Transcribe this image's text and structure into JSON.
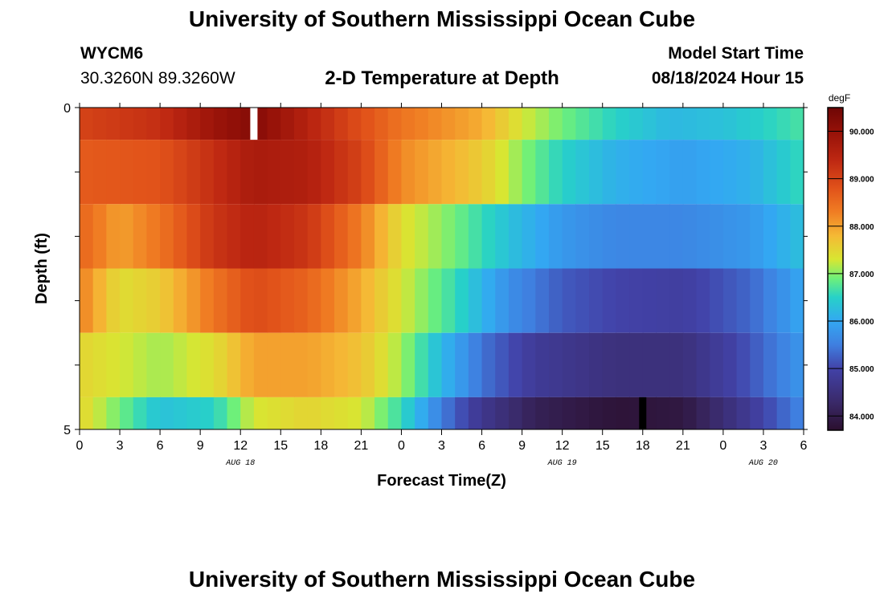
{
  "header": {
    "title": "University of Southern Mississippi Ocean Cube",
    "station_id": "WYCM6",
    "coordinates": "30.3260N  89.3260W",
    "plot_title": "2-D Temperature at Depth",
    "start_label": "Model Start Time",
    "start_value": "08/18/2024 Hour 15"
  },
  "footer": {
    "title": "University of Southern Mississippi Ocean Cube"
  },
  "colors": {
    "missing_high": "#ffffff",
    "missing_low": "#000000",
    "axis": "#000000"
  },
  "chart_data": {
    "type": "heatmap",
    "title": "2-D Temperature at Depth",
    "xlabel": "Forecast Time(Z)",
    "ylabel": "Depth (ft)",
    "x_tick_labels": [
      "0",
      "3",
      "6",
      "9",
      "12",
      "15",
      "18",
      "21",
      "0",
      "3",
      "6",
      "9",
      "12",
      "15",
      "18",
      "21",
      "0",
      "3",
      "6"
    ],
    "date_labels": [
      {
        "text": "AUG 18",
        "at_hour": 12
      },
      {
        "text": "AUG 19",
        "at_hour": 36
      },
      {
        "text": "AUG 20",
        "at_hour": 51
      }
    ],
    "y_tick_labels": [
      {
        "text": "0",
        "depth": 0
      },
      {
        "text": "5",
        "depth": 5
      }
    ],
    "y_minor_ticks": [
      1,
      2,
      3,
      4
    ],
    "xlim": [
      0,
      54
    ],
    "ylim": [
      0,
      5
    ],
    "colorbar": {
      "unit": "degF",
      "min": 83.7,
      "max": 90.5,
      "tick_labels": [
        "84.000",
        "85.000",
        "86.000",
        "87.000",
        "88.000",
        "89.000",
        "90.000"
      ],
      "tick_values": [
        84,
        85,
        86,
        87,
        88,
        89,
        90
      ],
      "stops": [
        [
          83.7,
          "#2b0f2e"
        ],
        [
          84.3,
          "#3a2a6a"
        ],
        [
          85.0,
          "#4242a8"
        ],
        [
          85.5,
          "#3f7fe0"
        ],
        [
          86.0,
          "#33a8f2"
        ],
        [
          86.5,
          "#27d1c8"
        ],
        [
          86.9,
          "#6ef07a"
        ],
        [
          87.3,
          "#d8e632"
        ],
        [
          87.8,
          "#f5b935"
        ],
        [
          88.3,
          "#f07d23"
        ],
        [
          88.8,
          "#e1521a"
        ],
        [
          89.4,
          "#bd2712"
        ],
        [
          90.0,
          "#951108"
        ],
        [
          90.5,
          "#6e0606"
        ]
      ]
    },
    "layers": [
      {
        "depth_top": 0.0,
        "depth_bottom": 0.5,
        "keyframes": [
          [
            0,
            89.0
          ],
          [
            6,
            89.3
          ],
          [
            10,
            89.9
          ],
          [
            13,
            90.2
          ],
          [
            16,
            89.7
          ],
          [
            20,
            89.0
          ],
          [
            24,
            88.4
          ],
          [
            30,
            87.9
          ],
          [
            33,
            87.3
          ],
          [
            36,
            86.9
          ],
          [
            40,
            86.5
          ],
          [
            44,
            86.2
          ],
          [
            48,
            86.3
          ],
          [
            54,
            86.7
          ]
        ]
      },
      {
        "depth_top": 0.5,
        "depth_bottom": 1.5,
        "keyframes": [
          [
            0,
            88.7
          ],
          [
            6,
            88.8
          ],
          [
            10,
            89.3
          ],
          [
            13,
            89.7
          ],
          [
            17,
            89.6
          ],
          [
            21,
            89.0
          ],
          [
            24,
            88.2
          ],
          [
            30,
            87.6
          ],
          [
            33,
            87.0
          ],
          [
            36,
            86.5
          ],
          [
            40,
            86.1
          ],
          [
            45,
            85.9
          ],
          [
            50,
            86.1
          ],
          [
            54,
            86.6
          ]
        ]
      },
      {
        "depth_top": 1.5,
        "depth_bottom": 2.5,
        "keyframes": [
          [
            0,
            88.6
          ],
          [
            3,
            88.0
          ],
          [
            6,
            88.4
          ],
          [
            10,
            89.2
          ],
          [
            13,
            89.5
          ],
          [
            17,
            89.2
          ],
          [
            21,
            88.3
          ],
          [
            24,
            87.4
          ],
          [
            28,
            86.9
          ],
          [
            32,
            86.3
          ],
          [
            36,
            85.8
          ],
          [
            40,
            85.6
          ],
          [
            45,
            85.6
          ],
          [
            50,
            85.8
          ],
          [
            54,
            86.3
          ]
        ]
      },
      {
        "depth_top": 2.5,
        "depth_bottom": 3.5,
        "keyframes": [
          [
            0,
            88.3
          ],
          [
            3,
            87.4
          ],
          [
            6,
            87.6
          ],
          [
            10,
            88.4
          ],
          [
            13,
            88.9
          ],
          [
            17,
            88.6
          ],
          [
            21,
            87.9
          ],
          [
            24,
            87.3
          ],
          [
            28,
            86.6
          ],
          [
            32,
            85.7
          ],
          [
            36,
            85.2
          ],
          [
            40,
            85.0
          ],
          [
            45,
            84.9
          ],
          [
            50,
            85.3
          ],
          [
            54,
            86.0
          ]
        ]
      },
      {
        "depth_top": 3.5,
        "depth_bottom": 4.5,
        "keyframes": [
          [
            0,
            87.5
          ],
          [
            3,
            87.3
          ],
          [
            6,
            87.1
          ],
          [
            10,
            87.4
          ],
          [
            13,
            88.0
          ],
          [
            17,
            88.0
          ],
          [
            21,
            87.7
          ],
          [
            24,
            87.1
          ],
          [
            27,
            86.2
          ],
          [
            30,
            85.4
          ],
          [
            34,
            84.8
          ],
          [
            40,
            84.5
          ],
          [
            45,
            84.5
          ],
          [
            49,
            85.0
          ],
          [
            54,
            85.8
          ]
        ]
      },
      {
        "depth_top": 4.5,
        "depth_bottom": 5.0,
        "keyframes": [
          [
            0,
            87.5
          ],
          [
            3,
            86.9
          ],
          [
            6,
            86.3
          ],
          [
            10,
            86.5
          ],
          [
            13,
            87.3
          ],
          [
            17,
            87.5
          ],
          [
            21,
            87.3
          ],
          [
            24,
            86.6
          ],
          [
            27,
            85.5
          ],
          [
            30,
            84.7
          ],
          [
            34,
            84.1
          ],
          [
            40,
            83.8
          ],
          [
            45,
            83.9
          ],
          [
            49,
            84.6
          ],
          [
            54,
            85.6
          ]
        ]
      }
    ],
    "missing_cells": [
      {
        "hour": 13,
        "depth_top": 0.0,
        "depth_bottom": 0.5,
        "kind": "high"
      },
      {
        "hour": 42,
        "depth_top": 4.5,
        "depth_bottom": 5.0,
        "kind": "low"
      }
    ]
  }
}
